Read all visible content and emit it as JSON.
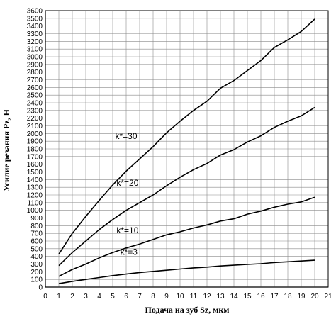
{
  "chart_data": {
    "type": "line",
    "xlabel": "Подача на зуб Sz, мкм",
    "ylabel": "Усилие резания Pz, Н",
    "xlim": [
      0,
      21
    ],
    "ylim": [
      0,
      3600
    ],
    "x_ticks": [
      0,
      1,
      2,
      3,
      4,
      5,
      6,
      7,
      8,
      9,
      10,
      11,
      12,
      13,
      14,
      15,
      16,
      17,
      18,
      19,
      20,
      21
    ],
    "y_ticks": [
      0,
      100,
      200,
      300,
      400,
      500,
      600,
      700,
      800,
      900,
      1000,
      1100,
      1200,
      1300,
      1400,
      1500,
      1600,
      1700,
      1800,
      1900,
      2000,
      2100,
      2200,
      2300,
      2400,
      2500,
      2600,
      2700,
      2800,
      2900,
      3000,
      3100,
      3200,
      3300,
      3400,
      3500,
      3600
    ],
    "grid": true,
    "line_color": "#000000",
    "x": [
      1,
      2,
      3,
      4,
      5,
      6,
      7,
      8,
      9,
      10,
      11,
      12,
      13,
      14,
      15,
      16,
      17,
      18,
      19,
      20
    ],
    "series": [
      {
        "name": "k*=30",
        "values": [
          430,
          700,
          920,
          1130,
          1330,
          1510,
          1670,
          1830,
          2010,
          2160,
          2300,
          2420,
          2590,
          2690,
          2820,
          2950,
          3120,
          3220,
          3330,
          3490
        ]
      },
      {
        "name": "k*=20",
        "values": [
          280,
          450,
          600,
          750,
          880,
          1000,
          1100,
          1200,
          1320,
          1430,
          1530,
          1610,
          1720,
          1790,
          1890,
          1970,
          2080,
          2160,
          2230,
          2340
        ]
      },
      {
        "name": "k*=10",
        "values": [
          140,
          230,
          300,
          380,
          450,
          510,
          560,
          620,
          680,
          720,
          770,
          810,
          860,
          890,
          950,
          990,
          1040,
          1080,
          1110,
          1170
        ]
      },
      {
        "name": "k*=3",
        "values": [
          45,
          75,
          100,
          125,
          150,
          170,
          190,
          205,
          220,
          235,
          250,
          260,
          275,
          285,
          295,
          305,
          320,
          330,
          340,
          350
        ]
      }
    ]
  }
}
